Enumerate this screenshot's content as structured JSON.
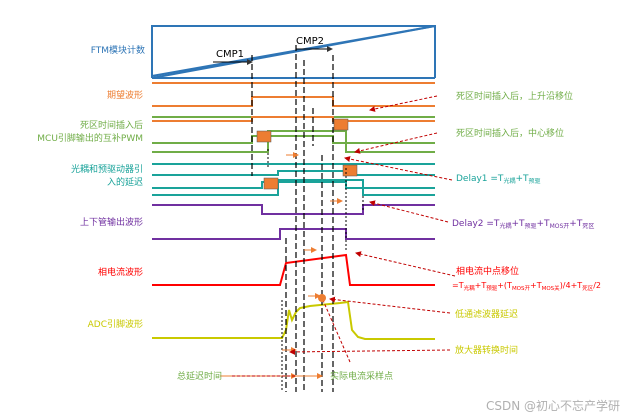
{
  "labels": {
    "ftm": "FTM模块计数",
    "cmp1": "CMP1",
    "cmp2": "CMP2",
    "expected": "期望波形",
    "deadtime_l1": "死区时间插入后",
    "deadtime_l2": "MCU引脚输出的互补PWM",
    "opto_l1": "光耦和预驱动器引",
    "opto_l2": "入的延迟",
    "updown": "上下管输出波形",
    "phase": "相电流波形",
    "adc": "ADC引脚波形"
  },
  "annotations": {
    "rising_shift": "死区时间插入后，上升沿移位",
    "center_shift": "死区时间插入后，中心移位",
    "delay1_main": "Delay1 =T",
    "delay1_s1": "光耦",
    "delay1_mid": "+T",
    "delay1_s2": "预驱",
    "delay2_main": "Delay2 =T",
    "delay2_s1": "光耦",
    "delay2_p1": "+T",
    "delay2_s2": "预驱",
    "delay2_p2": "+T",
    "delay2_s3": "MOS开",
    "delay2_p3": "+T",
    "delay2_s4": "死区",
    "phase_mid_shift": "相电流中点移位",
    "formula_a": "=T",
    "formula_s1": "光耦",
    "formula_b": "+T",
    "formula_s2": "预驱",
    "formula_c": "+(T",
    "formula_s3": "MOS开",
    "formula_d": "+T",
    "formula_s4": "MOS关",
    "formula_e": ")/4+T",
    "formula_s5": "死区",
    "formula_f": "/2",
    "lowpass": "低通滤波器延迟",
    "amp_time": "放大器转换时间",
    "total_delay": "总延迟时间",
    "actual_sample": "实际电流采样点"
  },
  "watermark": "CSDN @初心不忘产学研",
  "colors": {
    "ftm": "#2e75b6",
    "expected": "#ed7d31",
    "deadtime": "#70ad47",
    "opto": "#1aa39a",
    "updown": "#7030a0",
    "phase": "#ff0000",
    "adc": "#c9c900",
    "deadzone_fill": "#ed7d31",
    "annotation_arrow": "#c00000"
  }
}
